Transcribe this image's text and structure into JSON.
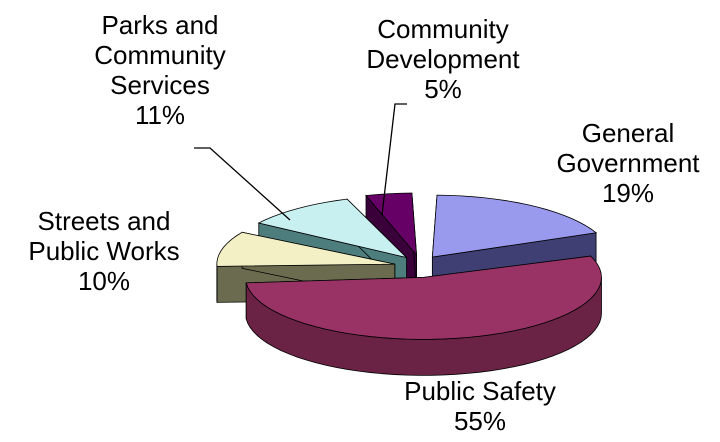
{
  "chart_data": {
    "type": "pie",
    "style": "3d-exploded",
    "legend": "none",
    "slices": [
      {
        "label": [
          "General",
          "Government"
        ],
        "pct_label": "19%",
        "value": 19,
        "colors": {
          "top": "#9999ee",
          "side": "#3f3f74"
        }
      },
      {
        "label": [
          "Public Safety"
        ],
        "pct_label": "55%",
        "value": 55,
        "colors": {
          "top": "#993366",
          "side": "#6a2245"
        }
      },
      {
        "label": [
          "Streets and",
          "Public Works"
        ],
        "pct_label": "10%",
        "value": 10,
        "colors": {
          "top": "#f2f0c4",
          "side": "#6b6b4f"
        }
      },
      {
        "label": [
          "Parks and",
          "Community",
          "Services"
        ],
        "pct_label": "11%",
        "value": 11,
        "colors": {
          "top": "#c8f0f0",
          "side": "#4d7d7d"
        }
      },
      {
        "label": [
          "Community",
          "Development"
        ],
        "pct_label": "5%",
        "value": 5,
        "colors": {
          "top": "#660066",
          "side": "#3a003a"
        }
      }
    ]
  }
}
